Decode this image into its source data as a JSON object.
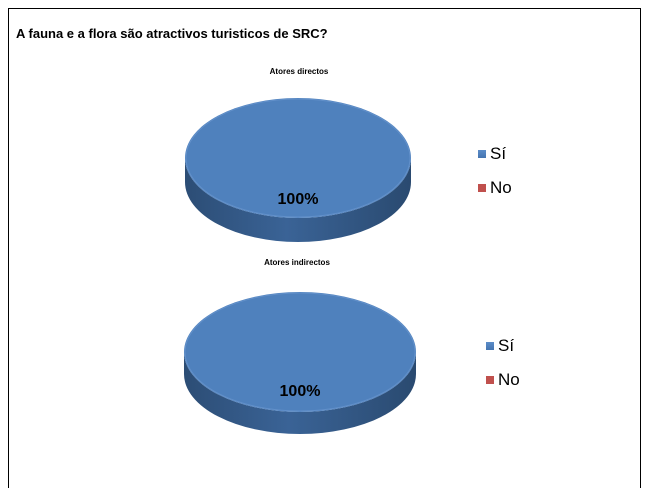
{
  "page_title": "A fauna e a flora são atractivos turisticos de SRC?",
  "chart_data": [
    {
      "type": "pie",
      "title": "Atores directos",
      "categories": [
        "Sí",
        "No"
      ],
      "values": [
        100,
        0
      ],
      "data_labels": [
        "100%",
        ""
      ],
      "colors": [
        "#4f81bd",
        "#c0504d"
      ],
      "legend_position": "right"
    },
    {
      "type": "pie",
      "title": "Atores indirectos",
      "categories": [
        "Sí",
        "No"
      ],
      "values": [
        100,
        0
      ],
      "data_labels": [
        "100%",
        ""
      ],
      "colors": [
        "#4f81bd",
        "#c0504d"
      ],
      "legend_position": "right"
    }
  ]
}
